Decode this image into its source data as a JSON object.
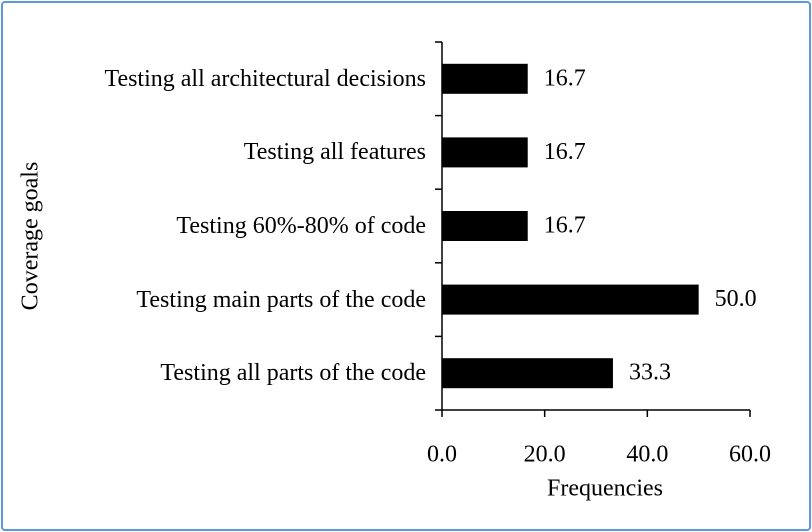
{
  "chart_data": {
    "type": "bar",
    "orientation": "horizontal",
    "categories": [
      "Testing all architectural decisions",
      "Testing all features",
      "Testing 60%-80% of code",
      "Testing main parts of the code",
      "Testing all parts of the code"
    ],
    "values": [
      16.7,
      16.7,
      16.7,
      50.0,
      33.3
    ],
    "value_labels": [
      "16.7",
      "16.7",
      "16.7",
      "50.0",
      "33.3"
    ],
    "color": "#000000",
    "xlim": [
      0,
      60
    ],
    "xticks": [
      {
        "value": 0,
        "label": "0.0"
      },
      {
        "value": 20,
        "label": "20.0"
      },
      {
        "value": 40,
        "label": "40.0"
      },
      {
        "value": 60,
        "label": "60.0"
      }
    ],
    "x_label": "Frequencies",
    "y_label": "Coverage goals"
  }
}
